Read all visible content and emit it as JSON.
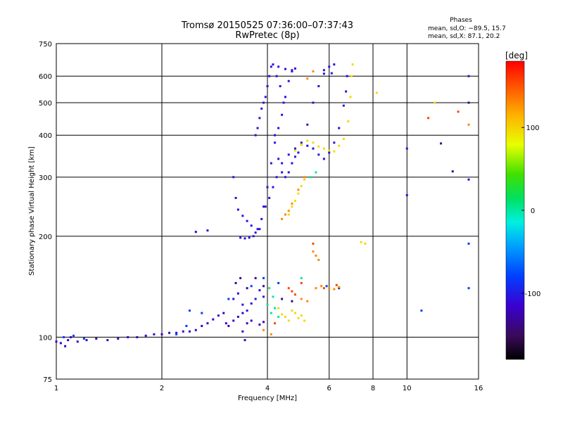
{
  "chart_data": {
    "type": "scatter",
    "title": "Tromsø 20150525 07:36:00–07:37:43",
    "subtitle": "RwPretec (8p)",
    "stats": {
      "heading": "Phases",
      "line1": "mean, sd,O: −89.5, 15.7",
      "line2": "mean, sd,X:  87.1, 20.2"
    },
    "xlabel": "Frequency [MHz]",
    "ylabel": "Stationary phase Virtual Height [km]",
    "x_scale": "log",
    "y_scale": "log",
    "xlim": [
      1,
      16
    ],
    "ylim": [
      75,
      750
    ],
    "x_ticks": [
      1,
      2,
      4,
      6,
      8,
      10,
      16
    ],
    "x_tick_labels": [
      "1",
      "2",
      "4",
      "6",
      "8",
      "10",
      "16"
    ],
    "x_gridlines": [
      2,
      4,
      6,
      8,
      10
    ],
    "y_ticks": [
      75,
      100,
      200,
      300,
      400,
      500,
      600,
      750
    ],
    "y_tick_labels": [
      "75",
      "100",
      "200",
      "300",
      "400",
      "500",
      "600",
      "750"
    ],
    "y_gridlines": [
      100,
      200,
      300,
      400,
      500,
      600
    ],
    "grid": true,
    "colorbar": {
      "label": "[deg]",
      "min": -180,
      "max": 180,
      "ticks": [
        100,
        0,
        -100
      ],
      "tick_labels": [
        "100",
        "0",
        "-100"
      ]
    },
    "series": [
      {
        "phase": -120,
        "points": [
          [
            1.0,
            97
          ],
          [
            1.03,
            96
          ],
          [
            1.06,
            94
          ],
          [
            1.08,
            98
          ],
          [
            1.1,
            100
          ],
          [
            1.15,
            97
          ],
          [
            1.22,
            98
          ],
          [
            1.3,
            99
          ],
          [
            1.4,
            98
          ],
          [
            1.5,
            99
          ],
          [
            1.6,
            100
          ],
          [
            1.7,
            100
          ],
          [
            1.8,
            101
          ],
          [
            1.9,
            102
          ],
          [
            2.0,
            102
          ],
          [
            2.1,
            103
          ],
          [
            2.2,
            103
          ],
          [
            2.3,
            104
          ],
          [
            2.4,
            104
          ],
          [
            2.5,
            105
          ],
          [
            2.6,
            108
          ],
          [
            2.7,
            110
          ],
          [
            2.8,
            113
          ],
          [
            2.9,
            116
          ],
          [
            3.0,
            118
          ],
          [
            3.05,
            110
          ],
          [
            3.1,
            108
          ],
          [
            3.2,
            112
          ],
          [
            3.3,
            115
          ],
          [
            3.4,
            118
          ],
          [
            3.5,
            110
          ],
          [
            3.6,
            112
          ],
          [
            3.8,
            109
          ],
          [
            3.9,
            111
          ],
          [
            3.4,
            104
          ],
          [
            3.45,
            98
          ],
          [
            2.5,
            206
          ],
          [
            2.7,
            208
          ]
        ]
      },
      {
        "phase": -105,
        "points": [
          [
            3.2,
            130
          ],
          [
            3.3,
            135
          ],
          [
            3.4,
            125
          ],
          [
            3.5,
            120
          ],
          [
            3.6,
            126
          ],
          [
            3.7,
            130
          ],
          [
            3.8,
            138
          ],
          [
            3.9,
            132
          ],
          [
            3.35,
            198
          ],
          [
            3.45,
            197
          ],
          [
            3.55,
            198
          ],
          [
            3.65,
            200
          ],
          [
            3.75,
            210
          ],
          [
            3.85,
            225
          ],
          [
            3.95,
            245
          ],
          [
            4.05,
            260
          ],
          [
            4.15,
            280
          ],
          [
            4.25,
            300
          ],
          [
            4.4,
            330
          ],
          [
            4.6,
            350
          ],
          [
            4.8,
            365
          ],
          [
            5.0,
            375
          ],
          [
            5.2,
            372
          ],
          [
            5.4,
            365
          ],
          [
            3.2,
            300
          ],
          [
            3.25,
            260
          ],
          [
            3.3,
            240
          ],
          [
            3.4,
            230
          ],
          [
            3.5,
            222
          ],
          [
            3.6,
            215
          ],
          [
            3.7,
            205
          ],
          [
            3.8,
            210
          ],
          [
            3.9,
            245
          ],
          [
            4.0,
            280
          ],
          [
            4.1,
            330
          ],
          [
            4.2,
            380
          ],
          [
            4.3,
            420
          ],
          [
            4.4,
            460
          ],
          [
            4.5,
            520
          ],
          [
            4.6,
            580
          ],
          [
            4.7,
            625
          ],
          [
            3.7,
            400
          ],
          [
            3.75,
            420
          ],
          [
            3.8,
            450
          ],
          [
            3.85,
            480
          ],
          [
            3.9,
            500
          ],
          [
            3.95,
            520
          ],
          [
            4.0,
            560
          ],
          [
            4.05,
            600
          ],
          [
            4.1,
            640
          ],
          [
            4.15,
            650
          ],
          [
            4.25,
            600
          ],
          [
            4.35,
            560
          ],
          [
            4.45,
            500
          ],
          [
            4.2,
            400
          ],
          [
            4.3,
            340
          ],
          [
            4.4,
            310
          ],
          [
            4.5,
            300
          ],
          [
            4.6,
            310
          ],
          [
            4.7,
            330
          ],
          [
            4.8,
            345
          ],
          [
            4.9,
            355
          ],
          [
            5.0,
            380
          ],
          [
            5.2,
            430
          ],
          [
            5.4,
            500
          ],
          [
            5.6,
            560
          ],
          [
            5.8,
            610
          ],
          [
            6.0,
            640
          ],
          [
            6.2,
            650
          ],
          [
            5.6,
            350
          ],
          [
            5.8,
            340
          ],
          [
            6.0,
            355
          ],
          [
            6.2,
            380
          ],
          [
            6.4,
            420
          ],
          [
            6.6,
            490
          ],
          [
            6.7,
            540
          ],
          [
            6.75,
            600
          ],
          [
            4.3,
            640
          ],
          [
            4.5,
            630
          ],
          [
            4.7,
            620
          ],
          [
            4.8,
            632
          ],
          [
            5.8,
            625
          ],
          [
            6.1,
            612
          ],
          [
            15.0,
            600
          ],
          [
            10.0,
            365
          ],
          [
            10.0,
            265
          ],
          [
            15.0,
            295
          ]
        ]
      },
      {
        "phase": -135,
        "points": [
          [
            3.25,
            145
          ],
          [
            3.35,
            150
          ],
          [
            3.5,
            140
          ],
          [
            3.7,
            150
          ],
          [
            3.9,
            142
          ],
          [
            4.4,
            130
          ],
          [
            4.7,
            128
          ],
          [
            6.4,
            140
          ],
          [
            15.0,
            500
          ],
          [
            12.5,
            378
          ],
          [
            13.5,
            312
          ]
        ]
      },
      {
        "phase": -80,
        "points": [
          [
            2.4,
            120
          ],
          [
            2.6,
            118
          ],
          [
            3.1,
            130
          ],
          [
            3.6,
            142
          ],
          [
            3.9,
            150
          ],
          [
            4.3,
            145
          ],
          [
            5.9,
            142
          ],
          [
            1.05,
            100
          ],
          [
            1.12,
            101
          ],
          [
            1.2,
            99
          ],
          [
            2.2,
            102
          ],
          [
            2.35,
            108
          ],
          [
            11.0,
            120
          ],
          [
            15.0,
            190
          ],
          [
            15.0,
            140
          ]
        ]
      },
      {
        "phase": 0,
        "points": [
          [
            4.0,
            125
          ],
          [
            4.1,
            118
          ],
          [
            4.2,
            122
          ],
          [
            5.0,
            150
          ],
          [
            4.3,
            115
          ],
          [
            5.3,
            300
          ],
          [
            5.5,
            310
          ],
          [
            4.05,
            140
          ],
          [
            4.15,
            132
          ]
        ]
      },
      {
        "phase": 95,
        "points": [
          [
            4.3,
            122
          ],
          [
            4.4,
            117
          ],
          [
            4.5,
            115
          ],
          [
            4.6,
            112
          ],
          [
            4.7,
            120
          ],
          [
            4.8,
            118
          ],
          [
            4.9,
            114
          ],
          [
            5.0,
            116
          ],
          [
            5.1,
            112
          ],
          [
            4.6,
            232
          ],
          [
            4.7,
            245
          ],
          [
            4.8,
            255
          ],
          [
            4.9,
            268
          ],
          [
            5.0,
            282
          ],
          [
            5.1,
            295
          ],
          [
            4.8,
            360
          ],
          [
            5.0,
            375
          ],
          [
            5.2,
            385
          ],
          [
            5.4,
            380
          ],
          [
            5.6,
            370
          ],
          [
            5.8,
            365
          ],
          [
            6.0,
            360
          ],
          [
            6.2,
            358
          ],
          [
            6.4,
            372
          ],
          [
            6.6,
            390
          ],
          [
            6.8,
            440
          ],
          [
            6.9,
            520
          ],
          [
            6.95,
            600
          ],
          [
            7.0,
            650
          ],
          [
            7.6,
            190
          ],
          [
            7.4,
            192
          ],
          [
            8.2,
            535
          ],
          [
            12.0,
            500
          ]
        ]
      },
      {
        "phase": 130,
        "points": [
          [
            4.4,
            225
          ],
          [
            4.5,
            232
          ],
          [
            4.6,
            238
          ],
          [
            4.7,
            250
          ],
          [
            4.9,
            275
          ],
          [
            5.1,
            300
          ],
          [
            5.0,
            130
          ],
          [
            5.2,
            128
          ],
          [
            5.5,
            140
          ],
          [
            5.7,
            142
          ],
          [
            6.0,
            140
          ],
          [
            6.2,
            139
          ],
          [
            6.4,
            141
          ],
          [
            4.1,
            102
          ],
          [
            3.9,
            105
          ],
          [
            5.4,
            180
          ],
          [
            5.5,
            175
          ],
          [
            5.6,
            170
          ],
          [
            15.0,
            430
          ],
          [
            5.2,
            590
          ],
          [
            5.4,
            620
          ]
        ]
      },
      {
        "phase": 155,
        "points": [
          [
            4.6,
            140
          ],
          [
            4.7,
            137
          ],
          [
            4.8,
            134
          ],
          [
            5.0,
            145
          ],
          [
            5.8,
            140
          ],
          [
            6.3,
            143
          ],
          [
            4.2,
            110
          ],
          [
            5.4,
            190
          ],
          [
            11.5,
            450
          ],
          [
            14.0,
            470
          ]
        ]
      }
    ]
  }
}
